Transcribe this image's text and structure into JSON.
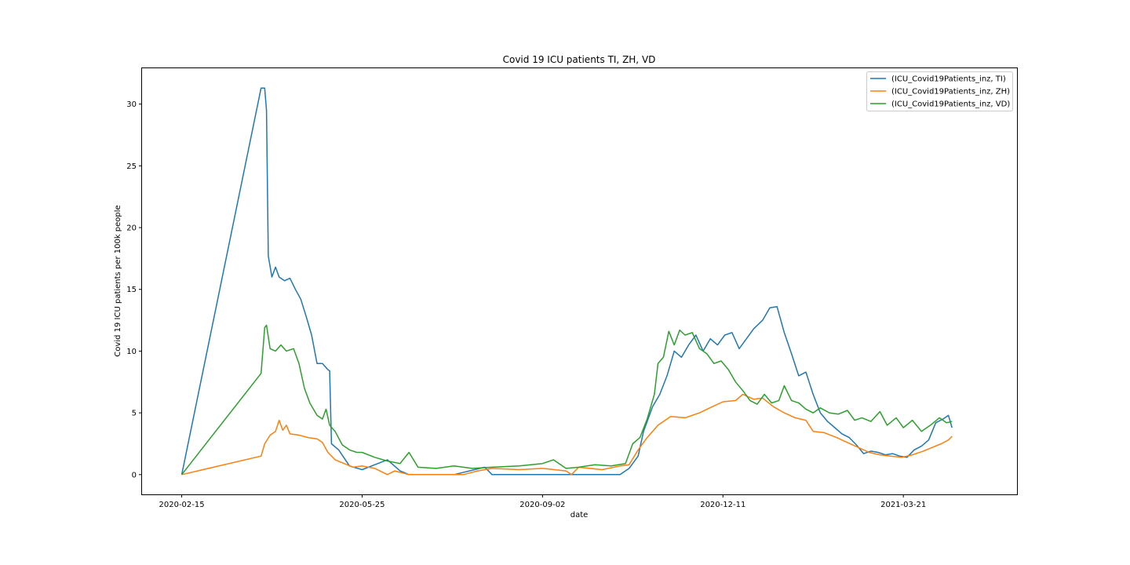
{
  "chart_data": {
    "type": "line",
    "title": "Covid 19 ICU patients TI, ZH, VD",
    "xlabel": "date",
    "ylabel": "Covid 19 ICU patients per 100k people",
    "x_ticks": [
      "2020-02-15",
      "2020-05-25",
      "2020-09-02",
      "2020-12-11",
      "2021-03-21"
    ],
    "y_ticks": [
      0,
      5,
      10,
      15,
      20,
      25,
      30
    ],
    "xlim": [
      "2020-01-24",
      "2021-05-23"
    ],
    "ylim": [
      -1.6,
      32.9
    ],
    "grid": false,
    "legend_position": "top-right",
    "series": [
      {
        "name": "(ICU_Covid19Patients_inz, TI)",
        "color": "#1f77b4",
        "points": [
          [
            "2020-02-15",
            0.0
          ],
          [
            "2020-03-30",
            31.3
          ],
          [
            "2020-04-01",
            31.3
          ],
          [
            "2020-04-02",
            29.5
          ],
          [
            "2020-04-03",
            17.7
          ],
          [
            "2020-04-05",
            16.0
          ],
          [
            "2020-04-07",
            16.8
          ],
          [
            "2020-04-09",
            16.0
          ],
          [
            "2020-04-12",
            15.7
          ],
          [
            "2020-04-15",
            15.9
          ],
          [
            "2020-04-18",
            15.0
          ],
          [
            "2020-04-21",
            14.2
          ],
          [
            "2020-04-24",
            12.8
          ],
          [
            "2020-04-27",
            11.3
          ],
          [
            "2020-04-30",
            9.0
          ],
          [
            "2020-05-03",
            9.0
          ],
          [
            "2020-05-06",
            8.5
          ],
          [
            "2020-05-07",
            8.4
          ],
          [
            "2020-05-08",
            2.5
          ],
          [
            "2020-05-12",
            2.0
          ],
          [
            "2020-05-18",
            0.7
          ],
          [
            "2020-05-25",
            0.4
          ],
          [
            "2020-06-01",
            0.8
          ],
          [
            "2020-06-08",
            1.2
          ],
          [
            "2020-06-15",
            0.3
          ],
          [
            "2020-06-20",
            0.0
          ],
          [
            "2020-07-15",
            0.0
          ],
          [
            "2020-08-01",
            0.6
          ],
          [
            "2020-08-05",
            0.0
          ],
          [
            "2020-09-02",
            0.0
          ],
          [
            "2020-10-15",
            0.0
          ],
          [
            "2020-10-20",
            0.5
          ],
          [
            "2020-10-25",
            1.5
          ],
          [
            "2020-10-28",
            3.5
          ],
          [
            "2020-11-02",
            5.5
          ],
          [
            "2020-11-06",
            6.5
          ],
          [
            "2020-11-10",
            8.0
          ],
          [
            "2020-11-14",
            10.0
          ],
          [
            "2020-11-18",
            9.5
          ],
          [
            "2020-11-22",
            10.5
          ],
          [
            "2020-11-26",
            11.3
          ],
          [
            "2020-11-30",
            10.0
          ],
          [
            "2020-12-04",
            11.0
          ],
          [
            "2020-12-08",
            10.5
          ],
          [
            "2020-12-12",
            11.3
          ],
          [
            "2020-12-16",
            11.5
          ],
          [
            "2020-12-20",
            10.2
          ],
          [
            "2020-12-24",
            11.0
          ],
          [
            "2020-12-28",
            11.8
          ],
          [
            "2021-01-02",
            12.5
          ],
          [
            "2021-01-06",
            13.5
          ],
          [
            "2021-01-10",
            13.6
          ],
          [
            "2021-01-14",
            11.5
          ],
          [
            "2021-01-18",
            9.8
          ],
          [
            "2021-01-22",
            8.0
          ],
          [
            "2021-01-26",
            8.3
          ],
          [
            "2021-01-30",
            6.5
          ],
          [
            "2021-02-03",
            5.0
          ],
          [
            "2021-02-07",
            4.3
          ],
          [
            "2021-02-11",
            3.8
          ],
          [
            "2021-02-15",
            3.3
          ],
          [
            "2021-02-19",
            3.0
          ],
          [
            "2021-02-23",
            2.4
          ],
          [
            "2021-02-27",
            1.7
          ],
          [
            "2021-03-03",
            1.9
          ],
          [
            "2021-03-07",
            1.8
          ],
          [
            "2021-03-11",
            1.6
          ],
          [
            "2021-03-15",
            1.7
          ],
          [
            "2021-03-19",
            1.5
          ],
          [
            "2021-03-23",
            1.4
          ],
          [
            "2021-03-27",
            2.0
          ],
          [
            "2021-03-31",
            2.3
          ],
          [
            "2021-04-04",
            2.8
          ],
          [
            "2021-04-08",
            4.2
          ],
          [
            "2021-04-12",
            4.5
          ],
          [
            "2021-04-15",
            4.8
          ],
          [
            "2021-04-17",
            3.8
          ]
        ]
      },
      {
        "name": "(ICU_Covid19Patients_inz, ZH)",
        "color": "#ff7f0e",
        "points": [
          [
            "2020-02-15",
            0.0
          ],
          [
            "2020-03-30",
            1.5
          ],
          [
            "2020-04-01",
            2.5
          ],
          [
            "2020-04-04",
            3.2
          ],
          [
            "2020-04-07",
            3.5
          ],
          [
            "2020-04-09",
            4.4
          ],
          [
            "2020-04-11",
            3.6
          ],
          [
            "2020-04-13",
            4.0
          ],
          [
            "2020-04-15",
            3.3
          ],
          [
            "2020-04-20",
            3.2
          ],
          [
            "2020-04-25",
            3.0
          ],
          [
            "2020-04-30",
            2.9
          ],
          [
            "2020-05-03",
            2.6
          ],
          [
            "2020-05-06",
            1.8
          ],
          [
            "2020-05-10",
            1.2
          ],
          [
            "2020-05-15",
            0.9
          ],
          [
            "2020-05-20",
            0.6
          ],
          [
            "2020-05-25",
            0.7
          ],
          [
            "2020-06-01",
            0.5
          ],
          [
            "2020-06-08",
            0.0
          ],
          [
            "2020-06-12",
            0.3
          ],
          [
            "2020-06-20",
            0.0
          ],
          [
            "2020-07-20",
            0.0
          ],
          [
            "2020-07-28",
            0.3
          ],
          [
            "2020-08-05",
            0.5
          ],
          [
            "2020-08-20",
            0.4
          ],
          [
            "2020-09-02",
            0.5
          ],
          [
            "2020-09-15",
            0.3
          ],
          [
            "2020-09-18",
            0.0
          ],
          [
            "2020-09-22",
            0.6
          ],
          [
            "2020-10-05",
            0.4
          ],
          [
            "2020-10-15",
            0.7
          ],
          [
            "2020-10-20",
            0.8
          ],
          [
            "2020-10-25",
            2.0
          ],
          [
            "2020-10-30",
            3.0
          ],
          [
            "2020-11-05",
            4.0
          ],
          [
            "2020-11-12",
            4.7
          ],
          [
            "2020-11-20",
            4.6
          ],
          [
            "2020-11-28",
            5.0
          ],
          [
            "2020-12-05",
            5.5
          ],
          [
            "2020-12-11",
            5.9
          ],
          [
            "2020-12-18",
            6.0
          ],
          [
            "2020-12-22",
            6.5
          ],
          [
            "2020-12-28",
            6.1
          ],
          [
            "2021-01-02",
            6.2
          ],
          [
            "2021-01-08",
            5.5
          ],
          [
            "2021-01-14",
            5.0
          ],
          [
            "2021-01-20",
            4.6
          ],
          [
            "2021-01-26",
            4.4
          ],
          [
            "2021-01-30",
            3.5
          ],
          [
            "2021-02-05",
            3.4
          ],
          [
            "2021-02-12",
            3.0
          ],
          [
            "2021-02-18",
            2.6
          ],
          [
            "2021-02-24",
            2.2
          ],
          [
            "2021-03-02",
            1.8
          ],
          [
            "2021-03-08",
            1.6
          ],
          [
            "2021-03-14",
            1.5
          ],
          [
            "2021-03-20",
            1.4
          ],
          [
            "2021-03-26",
            1.6
          ],
          [
            "2021-04-01",
            1.9
          ],
          [
            "2021-04-06",
            2.2
          ],
          [
            "2021-04-11",
            2.5
          ],
          [
            "2021-04-15",
            2.8
          ],
          [
            "2021-04-17",
            3.1
          ]
        ]
      },
      {
        "name": "(ICU_Covid19Patients_inz, VD)",
        "color": "#2ca02c",
        "points": [
          [
            "2020-02-15",
            0.0
          ],
          [
            "2020-03-30",
            8.2
          ],
          [
            "2020-04-01",
            11.9
          ],
          [
            "2020-04-02",
            12.1
          ],
          [
            "2020-04-04",
            10.2
          ],
          [
            "2020-04-07",
            10.0
          ],
          [
            "2020-04-10",
            10.5
          ],
          [
            "2020-04-13",
            10.0
          ],
          [
            "2020-04-17",
            10.2
          ],
          [
            "2020-04-20",
            9.0
          ],
          [
            "2020-04-23",
            7.0
          ],
          [
            "2020-04-26",
            5.8
          ],
          [
            "2020-04-30",
            4.8
          ],
          [
            "2020-05-03",
            4.5
          ],
          [
            "2020-05-05",
            5.3
          ],
          [
            "2020-05-07",
            4.0
          ],
          [
            "2020-05-10",
            3.5
          ],
          [
            "2020-05-14",
            2.4
          ],
          [
            "2020-05-18",
            2.0
          ],
          [
            "2020-05-22",
            1.8
          ],
          [
            "2020-05-25",
            1.8
          ],
          [
            "2020-06-01",
            1.4
          ],
          [
            "2020-06-08",
            1.1
          ],
          [
            "2020-06-15",
            0.9
          ],
          [
            "2020-06-20",
            1.8
          ],
          [
            "2020-06-25",
            0.6
          ],
          [
            "2020-07-05",
            0.5
          ],
          [
            "2020-07-15",
            0.7
          ],
          [
            "2020-07-25",
            0.5
          ],
          [
            "2020-08-05",
            0.6
          ],
          [
            "2020-08-20",
            0.7
          ],
          [
            "2020-09-02",
            0.9
          ],
          [
            "2020-09-08",
            1.2
          ],
          [
            "2020-09-15",
            0.5
          ],
          [
            "2020-09-22",
            0.6
          ],
          [
            "2020-10-01",
            0.8
          ],
          [
            "2020-10-10",
            0.7
          ],
          [
            "2020-10-18",
            0.9
          ],
          [
            "2020-10-22",
            2.5
          ],
          [
            "2020-10-26",
            3.0
          ],
          [
            "2020-10-30",
            4.5
          ],
          [
            "2020-11-03",
            6.5
          ],
          [
            "2020-11-05",
            9.0
          ],
          [
            "2020-11-08",
            9.5
          ],
          [
            "2020-11-11",
            11.6
          ],
          [
            "2020-11-14",
            10.5
          ],
          [
            "2020-11-17",
            11.7
          ],
          [
            "2020-11-20",
            11.3
          ],
          [
            "2020-11-24",
            11.5
          ],
          [
            "2020-11-28",
            10.2
          ],
          [
            "2020-12-02",
            9.8
          ],
          [
            "2020-12-06",
            9.0
          ],
          [
            "2020-12-10",
            9.2
          ],
          [
            "2020-12-14",
            8.5
          ],
          [
            "2020-12-18",
            7.5
          ],
          [
            "2020-12-22",
            6.8
          ],
          [
            "2020-12-26",
            6.0
          ],
          [
            "2020-12-30",
            5.7
          ],
          [
            "2021-01-03",
            6.5
          ],
          [
            "2021-01-07",
            5.8
          ],
          [
            "2021-01-11",
            6.0
          ],
          [
            "2021-01-14",
            7.2
          ],
          [
            "2021-01-18",
            6.0
          ],
          [
            "2021-01-22",
            5.8
          ],
          [
            "2021-01-26",
            5.3
          ],
          [
            "2021-01-30",
            5.0
          ],
          [
            "2021-02-03",
            5.4
          ],
          [
            "2021-02-08",
            5.0
          ],
          [
            "2021-02-13",
            4.9
          ],
          [
            "2021-02-18",
            5.2
          ],
          [
            "2021-02-22",
            4.4
          ],
          [
            "2021-02-26",
            4.6
          ],
          [
            "2021-03-03",
            4.3
          ],
          [
            "2021-03-08",
            5.1
          ],
          [
            "2021-03-12",
            4.0
          ],
          [
            "2021-03-17",
            4.6
          ],
          [
            "2021-03-21",
            3.8
          ],
          [
            "2021-03-26",
            4.4
          ],
          [
            "2021-03-31",
            3.5
          ],
          [
            "2021-04-05",
            4.0
          ],
          [
            "2021-04-10",
            4.6
          ],
          [
            "2021-04-14",
            4.2
          ],
          [
            "2021-04-17",
            4.3
          ]
        ]
      }
    ]
  }
}
